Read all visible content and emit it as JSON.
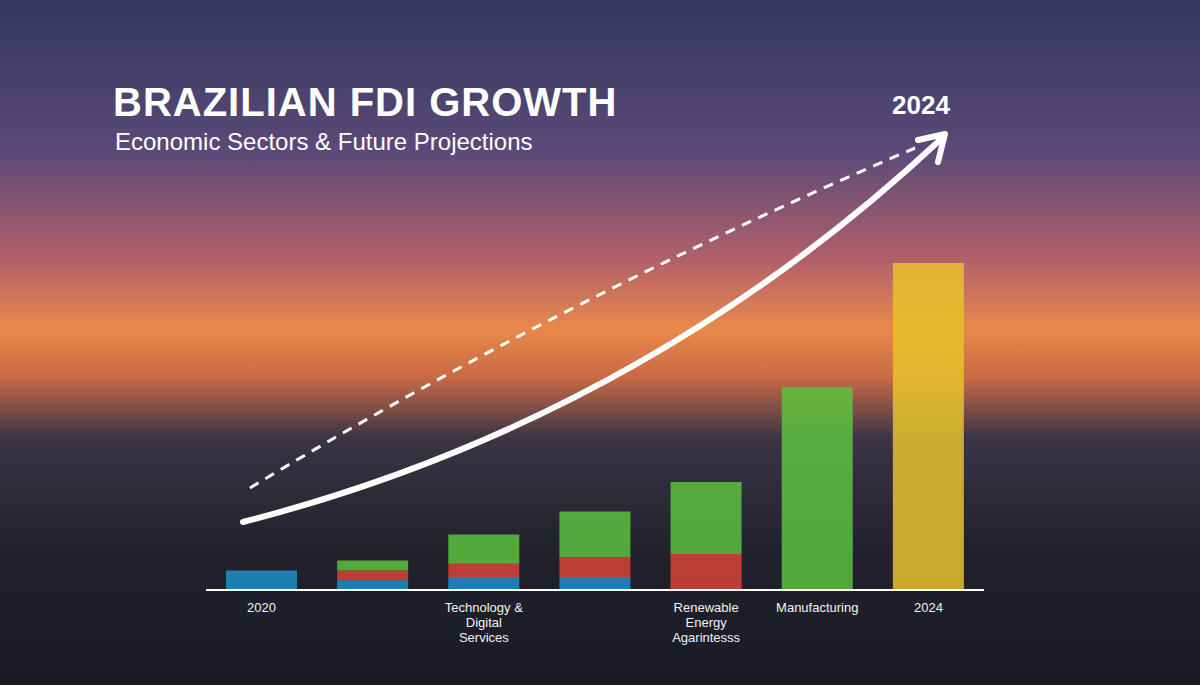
{
  "chart_data": {
    "type": "bar",
    "title": "BRAZILIAN FDI GROWTH",
    "subtitle": "Economic Sectors & Future Projections",
    "annotations": [
      "2024"
    ],
    "categories": [
      "2020",
      null,
      "Technology & Digital Services",
      null,
      "Renewable Energy Agarintesss",
      "Manufacturing",
      "2024"
    ],
    "series": [
      {
        "color": "#1f8fc4",
        "values": [
          6,
          3,
          4,
          4,
          null,
          null,
          null
        ]
      },
      {
        "color": "#d8423a",
        "values": [
          null,
          3,
          4,
          6,
          11,
          null,
          null
        ]
      },
      {
        "color": "#5cc23e",
        "values": [
          null,
          3,
          9,
          14,
          22,
          62,
          null
        ]
      },
      {
        "color": "#e6c22a",
        "values": [
          null,
          null,
          null,
          null,
          null,
          null,
          100
        ]
      }
    ],
    "stacked": true,
    "ylim": [
      0,
      100
    ],
    "grid": false,
    "tick_labels": "x"
  }
}
